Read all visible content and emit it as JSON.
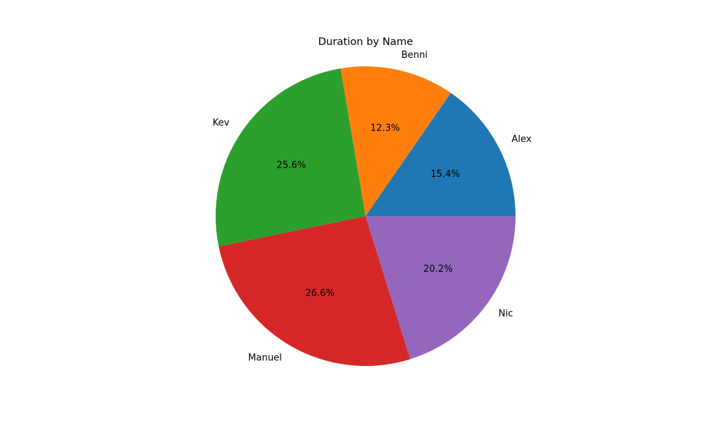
{
  "chart_data": {
    "type": "pie",
    "title": "Duration by Name",
    "categories": [
      "Alex",
      "Benni",
      "Kev",
      "Manuel",
      "Nic"
    ],
    "values": [
      15.4,
      12.3,
      25.6,
      26.6,
      20.2
    ],
    "percent_labels": [
      "15.4%",
      "12.3%",
      "25.6%",
      "26.6%",
      "20.2%"
    ],
    "colors": [
      "#1f77b4",
      "#ff7f0e",
      "#2ca02c",
      "#d62728",
      "#9467bd"
    ],
    "start_angle_deg": 0,
    "direction": "counterclockwise"
  }
}
